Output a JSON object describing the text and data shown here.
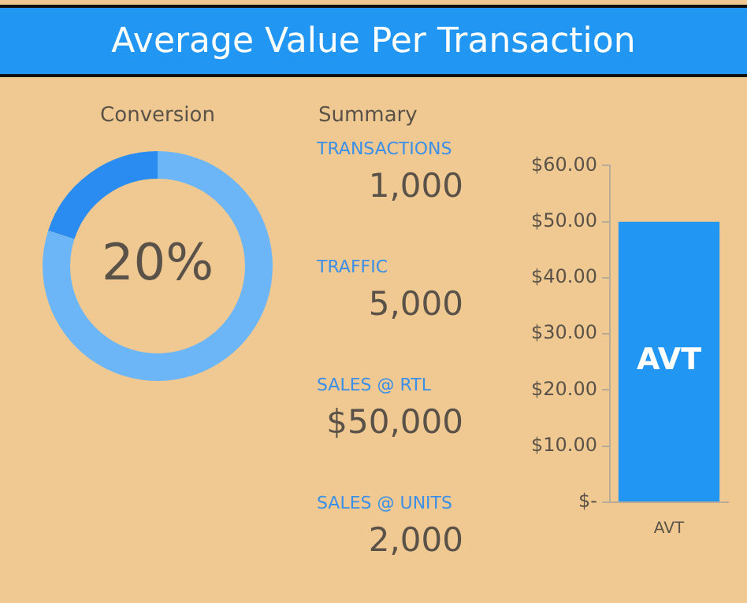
{
  "chart_data": [
    {
      "type": "other",
      "title": "Average Value Per Transaction"
    },
    {
      "type": "donut",
      "title": "Conversion",
      "categories": [
        null,
        null
      ],
      "values": [
        20,
        80
      ],
      "colors": [
        "#2a8cf0",
        "#6cb6f8"
      ],
      "annotations": [
        "20%"
      ]
    },
    {
      "type": "other",
      "title": "Summary",
      "annotations": [
        "TRANSACTIONS",
        "1,000",
        "TRAFFIC",
        "5,000",
        "SALES @ RTL",
        "$50,000",
        "SALES @ UNITS",
        "2,000"
      ]
    },
    {
      "type": "bar",
      "categories": [
        "AVT"
      ],
      "values": [
        50
      ],
      "color": "#2196f3",
      "ylim": [
        0,
        60
      ],
      "yticks": [
        {
          "value": 0,
          "label": "$-"
        },
        {
          "value": 10,
          "label": "$10.00"
        },
        {
          "value": 20,
          "label": "$20.00"
        },
        {
          "value": 30,
          "label": "$30.00"
        },
        {
          "value": 40,
          "label": "$40.00"
        },
        {
          "value": 50,
          "label": "$50.00"
        },
        {
          "value": 60,
          "label": "$60.00"
        }
      ],
      "annotations": [
        "AVT"
      ]
    }
  ]
}
